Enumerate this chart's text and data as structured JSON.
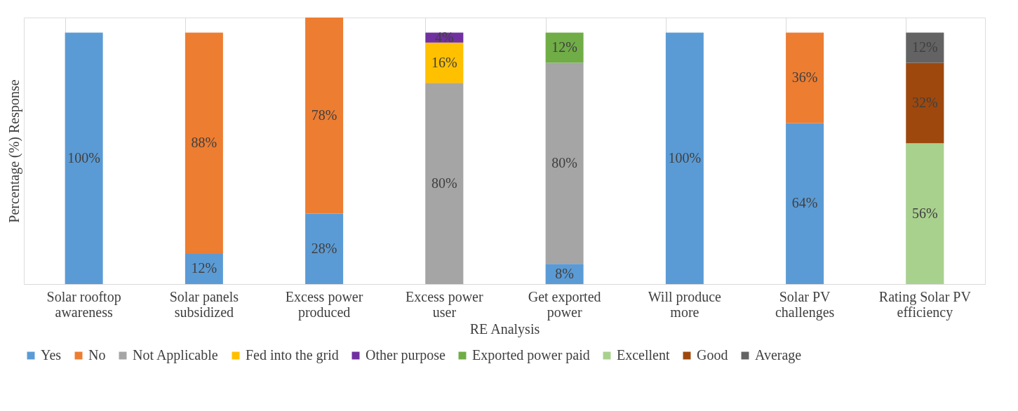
{
  "chart_data": {
    "type": "bar",
    "stacked": true,
    "xlabel": "RE Analysis",
    "ylabel": "Percentage (%) Response",
    "categories": [
      "Solar rooftop awareness",
      "Solar panels subsidized",
      "Excess power produced",
      "Excess power user",
      "Get exported power",
      "Will produce more",
      "Solar PV challenges",
      "Rating Solar PV efficiency"
    ],
    "series": [
      {
        "name": "Yes",
        "color": "#5b9bd5",
        "values": [
          100,
          12,
          28,
          null,
          8,
          100,
          64,
          null
        ],
        "value_labels": [
          "100%",
          "12%",
          "28%",
          null,
          "8%",
          "100%",
          "64%",
          null
        ]
      },
      {
        "name": "No",
        "color": "#ed7d31",
        "values": [
          null,
          88,
          78,
          null,
          null,
          null,
          36,
          null
        ],
        "value_labels": [
          null,
          "88%",
          "78%",
          null,
          null,
          null,
          "36%",
          null
        ]
      },
      {
        "name": "Not Applicable",
        "color": "#a5a5a5",
        "values": [
          null,
          null,
          null,
          80,
          80,
          null,
          null,
          null
        ],
        "value_labels": [
          null,
          null,
          null,
          "80%",
          "80%",
          null,
          null,
          null
        ]
      },
      {
        "name": "Fed into the grid",
        "color": "#ffc000",
        "values": [
          null,
          null,
          null,
          16,
          null,
          null,
          null,
          null
        ],
        "value_labels": [
          null,
          null,
          null,
          "16%",
          null,
          null,
          null,
          null
        ]
      },
      {
        "name": "Other purpose",
        "color": "#7030a0",
        "values": [
          null,
          null,
          null,
          4,
          null,
          null,
          null,
          null
        ],
        "value_labels": [
          null,
          null,
          null,
          "4%",
          null,
          null,
          null,
          null
        ]
      },
      {
        "name": "Exported power paid",
        "color": "#70ad47",
        "values": [
          null,
          null,
          null,
          null,
          12,
          null,
          null,
          null
        ],
        "value_labels": [
          null,
          null,
          null,
          null,
          "12%",
          null,
          null,
          null
        ]
      },
      {
        "name": "Excellent",
        "color": "#a9d18e",
        "values": [
          null,
          null,
          null,
          null,
          null,
          null,
          null,
          56
        ],
        "value_labels": [
          null,
          null,
          null,
          null,
          null,
          null,
          null,
          "56%"
        ]
      },
      {
        "name": "Good",
        "color": "#9e480e",
        "values": [
          null,
          null,
          null,
          null,
          null,
          null,
          null,
          32
        ],
        "value_labels": [
          null,
          null,
          null,
          null,
          null,
          null,
          null,
          "32%"
        ]
      },
      {
        "name": "Average",
        "color": "#636363",
        "values": [
          null,
          null,
          null,
          null,
          null,
          null,
          null,
          12
        ],
        "value_labels": [
          null,
          null,
          null,
          null,
          null,
          null,
          null,
          "12%"
        ]
      }
    ],
    "ylim": [
      0,
      106
    ],
    "grid": "x",
    "legend": "bottom",
    "tick_labels": "x"
  }
}
